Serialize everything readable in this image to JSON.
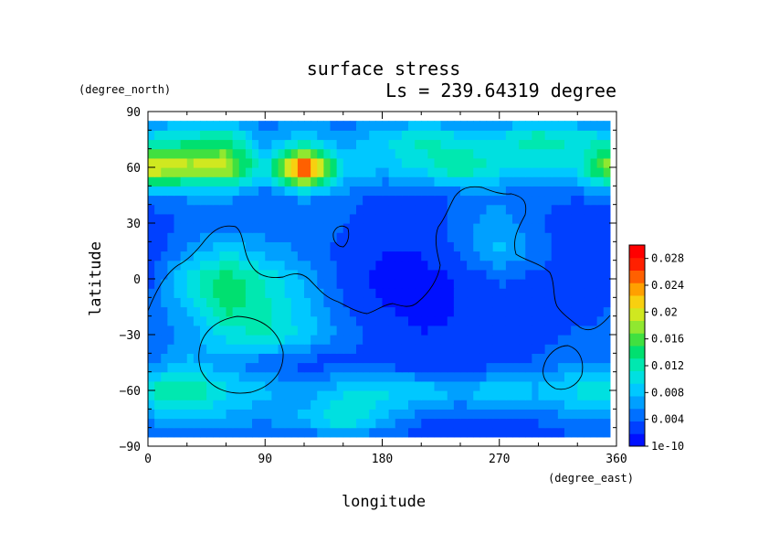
{
  "chart_data": {
    "type": "heatmap",
    "title": "surface stress",
    "subtitle": "Ls = 239.64319 degree",
    "xlabel": "longitude",
    "ylabel": "latitude",
    "x_unit": "(degree_east)",
    "y_unit": "(degree_north)",
    "xlim": [
      0,
      360
    ],
    "ylim": [
      -90,
      90
    ],
    "x_ticks": [
      "0",
      "90",
      "180",
      "270",
      "360"
    ],
    "y_ticks": [
      "90",
      "60",
      "30",
      "0",
      "−30",
      "−60",
      "−90"
    ],
    "colorbar": {
      "ticks": [
        "0.028",
        "0.024",
        "0.02",
        "0.016",
        "0.012",
        "0.008",
        "0.004",
        "1e-10"
      ],
      "range": [
        0,
        0.03
      ],
      "colors": [
        "#0010ff",
        "#0040ff",
        "#0070ff",
        "#00a0ff",
        "#00c8ff",
        "#00e0e0",
        "#00e8b0",
        "#00e070",
        "#40e040",
        "#90e830",
        "#d0e820",
        "#f8d010",
        "#ffa000",
        "#ff6000",
        "#ff2000",
        "#ff0000"
      ],
      "over_color": "#ffffff"
    },
    "field": {
      "lon_step": 30,
      "lat_step": 15,
      "lons": [
        0,
        30,
        60,
        90,
        120,
        150,
        180,
        210,
        240,
        270,
        300,
        330,
        360
      ],
      "lats": [
        -90,
        -75,
        -60,
        -45,
        -30,
        -15,
        0,
        15,
        30,
        45,
        60,
        75,
        90
      ],
      "values": [
        [
          0.002,
          0.002,
          0.002,
          0.002,
          0.002,
          0.002,
          0.002,
          0.002,
          0.002,
          0.002,
          0.002,
          0.002,
          0.002
        ],
        [
          0.006,
          0.008,
          0.007,
          0.006,
          0.008,
          0.012,
          0.008,
          0.004,
          0.003,
          0.003,
          0.004,
          0.006,
          0.006
        ],
        [
          0.012,
          0.014,
          0.01,
          0.008,
          0.006,
          0.009,
          0.01,
          0.009,
          0.008,
          0.009,
          0.008,
          0.01,
          0.012
        ],
        [
          0.005,
          0.008,
          0.006,
          0.004,
          0.003,
          0.003,
          0.003,
          0.002,
          0.002,
          0.003,
          0.004,
          0.006,
          0.005
        ],
        [
          0.004,
          0.006,
          0.01,
          0.012,
          0.009,
          0.005,
          0.003,
          0.002,
          0.002,
          0.002,
          0.003,
          0.004,
          0.004
        ],
        [
          0.004,
          0.008,
          0.014,
          0.012,
          0.008,
          0.004,
          0.002,
          0.001,
          0.002,
          0.003,
          0.002,
          0.003,
          0.004
        ],
        [
          0.003,
          0.01,
          0.015,
          0.011,
          0.007,
          0.003,
          0.001,
          0.001,
          0.002,
          0.004,
          0.003,
          0.002,
          0.003
        ],
        [
          0.002,
          0.006,
          0.009,
          0.007,
          0.005,
          0.003,
          0.002,
          0.002,
          0.004,
          0.008,
          0.005,
          0.002,
          0.002
        ],
        [
          0.002,
          0.004,
          0.005,
          0.004,
          0.005,
          0.004,
          0.002,
          0.002,
          0.005,
          0.007,
          0.004,
          0.002,
          0.002
        ],
        [
          0.005,
          0.006,
          0.006,
          0.004,
          0.006,
          0.005,
          0.003,
          0.003,
          0.004,
          0.005,
          0.004,
          0.004,
          0.005
        ],
        [
          0.022,
          0.02,
          0.02,
          0.01,
          0.03,
          0.01,
          0.008,
          0.01,
          0.014,
          0.01,
          0.009,
          0.01,
          0.022
        ],
        [
          0.01,
          0.012,
          0.014,
          0.006,
          0.009,
          0.006,
          0.009,
          0.012,
          0.01,
          0.01,
          0.013,
          0.011,
          0.01
        ],
        [
          0.004,
          0.004,
          0.004,
          0.004,
          0.004,
          0.004,
          0.004,
          0.004,
          0.004,
          0.004,
          0.004,
          0.004,
          0.004
        ]
      ]
    }
  }
}
